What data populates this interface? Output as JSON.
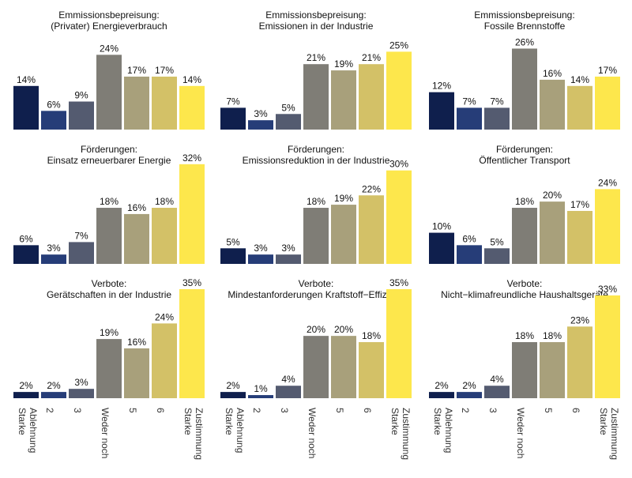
{
  "chart_data": {
    "type": "bar",
    "colors": [
      "#0f1f4d",
      "#263d78",
      "#545b70",
      "#7f7d76",
      "#a8a07b",
      "#d3c167",
      "#fde74c"
    ],
    "categories": [
      "Starke Ablehnung",
      "2",
      "3",
      "Weder noch",
      "5",
      "6",
      "Starke Zustimmung"
    ],
    "category_lines": [
      [
        "Starke",
        "Ablehnung"
      ],
      [
        "2"
      ],
      [
        "3"
      ],
      [
        "Weder noch"
      ],
      [
        "5"
      ],
      [
        "6"
      ],
      [
        "Starke",
        "Zustimmung"
      ]
    ],
    "ylim": [
      0,
      35
    ],
    "value_suffix": "%",
    "panels": [
      {
        "title": [
          "Emmissionsbepreisung:",
          "(Privater) Energieverbrauch"
        ],
        "values": [
          14,
          6,
          9,
          24,
          17,
          17,
          14
        ]
      },
      {
        "title": [
          "Emmissionsbepreisung:",
          "Emissionen in der Industrie"
        ],
        "values": [
          7,
          3,
          5,
          21,
          19,
          21,
          25
        ]
      },
      {
        "title": [
          "Emmissionsbepreisung:",
          "Fossile Brennstoffe"
        ],
        "values": [
          12,
          7,
          7,
          26,
          16,
          14,
          17
        ]
      },
      {
        "title": [
          "Förderungen:",
          "Einsatz erneuerbarer Energie"
        ],
        "values": [
          6,
          3,
          7,
          18,
          16,
          18,
          32
        ]
      },
      {
        "title": [
          "Förderungen:",
          "Emissionsreduktion in der Industrie"
        ],
        "values": [
          5,
          3,
          3,
          18,
          19,
          22,
          30
        ]
      },
      {
        "title": [
          "Förderungen:",
          "Öffentlicher Transport"
        ],
        "values": [
          10,
          6,
          5,
          18,
          20,
          17,
          24
        ]
      },
      {
        "title": [
          "Verbote:",
          "Gerätschaften in der Industrie"
        ],
        "values": [
          2,
          2,
          3,
          19,
          16,
          24,
          35
        ]
      },
      {
        "title": [
          "Verbote:",
          "Mindestanforderungen Kraftstoff−Effizienz"
        ],
        "values": [
          2,
          1,
          4,
          20,
          20,
          18,
          35
        ]
      },
      {
        "title": [
          "Verbote:",
          "Nicht−klimafreundliche Haushaltsgeräte"
        ],
        "values": [
          2,
          2,
          4,
          18,
          18,
          23,
          33
        ]
      }
    ]
  }
}
